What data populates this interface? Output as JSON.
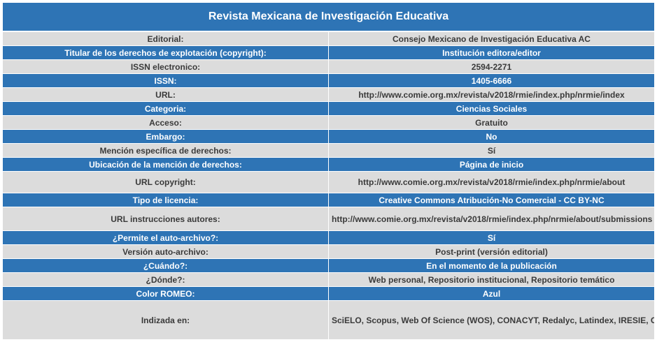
{
  "title": "Revista Mexicana de Investigación Educativa",
  "rows": [
    {
      "label": "Editorial:",
      "value": "Consejo Mexicano de Investigación Educativa AC"
    },
    {
      "label": "Titular de los derechos de explotación (copyright):",
      "value": "Institución editora/editor"
    },
    {
      "label": "ISSN electronico:",
      "value": "2594-2271"
    },
    {
      "label": "ISSN:",
      "value": "1405-6666"
    },
    {
      "label": "URL:",
      "value": "http://www.comie.org.mx/revista/v2018/rmie/index.php/nrmie/index"
    },
    {
      "label": "Categoria:",
      "value": "Ciencias Sociales"
    },
    {
      "label": "Acceso:",
      "value": "Gratuito"
    },
    {
      "label": "Embargo:",
      "value": "No"
    },
    {
      "label": "Mención específica de derechos:",
      "value": "Sí"
    },
    {
      "label": "Ubicación de la mención de derechos:",
      "value": "Página de inicio"
    },
    {
      "label": "URL copyright:",
      "value": "http://www.comie.org.mx/revista/v2018/rmie/index.php/nrmie/about"
    },
    {
      "label": "Tipo de licencia:",
      "value": "Creative Commons Atribución-No Comercial - CC BY-NC"
    },
    {
      "label": "URL instrucciones autores:",
      "value": "http://www.comie.org.mx/revista/v2018/rmie/index.php/nrmie/about/submissions"
    },
    {
      "label": "¿Permite el auto-archivo?:",
      "value": "Sí"
    },
    {
      "label": "Versión auto-archivo:",
      "value": "Post-print (versión editorial)"
    },
    {
      "label": "¿Cuándo?:",
      "value": "En el momento de la publicación"
    },
    {
      "label": "¿Dónde?:",
      "value": "Web personal, Repositorio institucional, Repositorio temático"
    },
    {
      "label": "Color ROMEO:",
      "value": "Azul"
    },
    {
      "label": "Indizada en:",
      "value": "SciELO, Scopus, Web Of Science (WOS), CONACYT, Redalyc, Latindex, IRESIE, Catmex, Clase"
    }
  ],
  "colors": {
    "header_blue": "#2e74b5",
    "light_gray": "#dcdcdc",
    "text_dark": "#3a3a3a"
  }
}
